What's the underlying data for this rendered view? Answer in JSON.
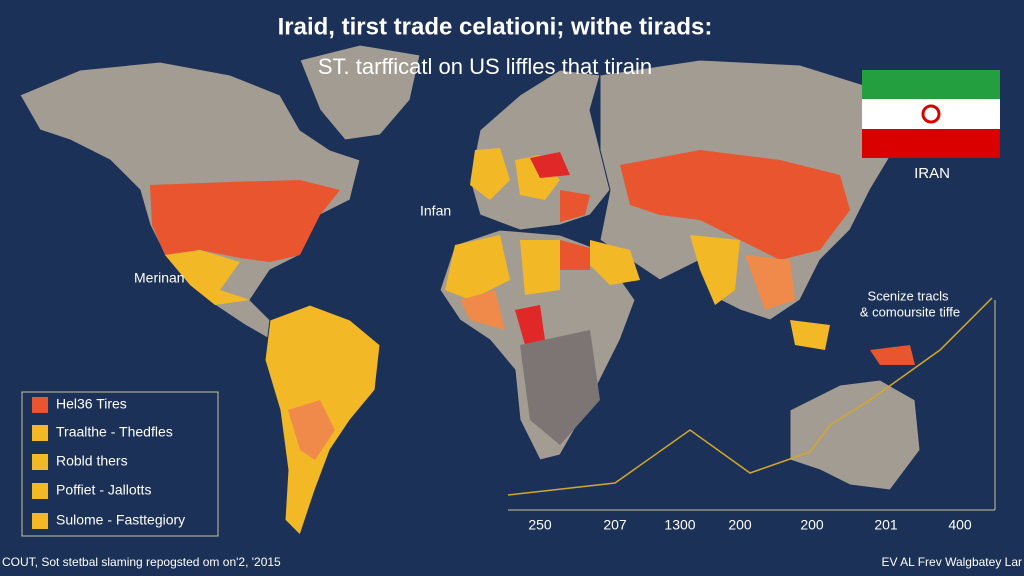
{
  "title": "Iraid, tirst trade celationi; withe tirads:",
  "subtitle": "ST. tarfficatl on US liffles that tirain",
  "flag_label": "IRAN",
  "map_labels": [
    "Infan",
    "Merinan"
  ],
  "inset_note": [
    "Scenize tracls",
    "& comoursite tiffe"
  ],
  "legend": [
    {
      "label": "Hel36 Tires",
      "color": "#e8552e"
    },
    {
      "label": "Traalthe - Thedfles",
      "color": "#f2b826"
    },
    {
      "label": "Robld thers",
      "color": "#f2b826"
    },
    {
      "label": "Poffiet - Jallotts",
      "color": "#f2b826"
    },
    {
      "label": "Sulome - Fasttegiory",
      "color": "#f2b826"
    }
  ],
  "inset_axis_labels": [
    "250",
    "207",
    "1300",
    "200",
    "200",
    "201",
    "400"
  ],
  "footer_left": "COUT, Sot stetbal slaming repogsted om on'2, '2015",
  "footer_right": "EV AL Frev Walgbatey Lar"
}
